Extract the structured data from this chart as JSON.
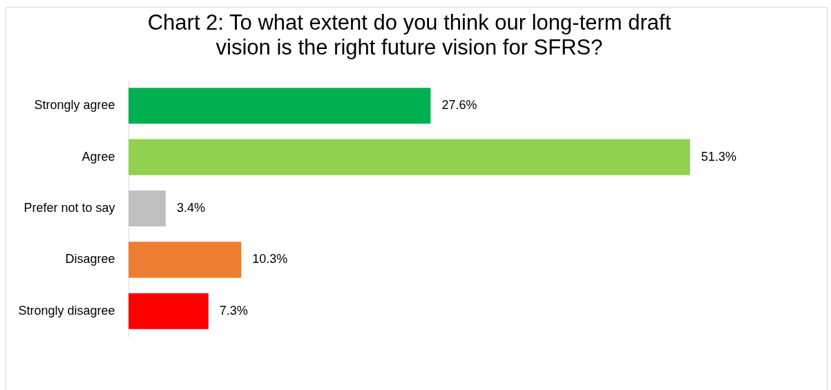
{
  "chart_data": {
    "type": "bar",
    "orientation": "horizontal",
    "title": "Chart 2: To what extent do you think our long-term draft vision is the right future vision for SFRS?",
    "categories": [
      "Strongly agree",
      "Agree",
      "Prefer not to say",
      "Disagree",
      "Strongly disagree"
    ],
    "values": [
      27.6,
      51.3,
      3.4,
      10.3,
      7.3
    ],
    "colors": [
      "#00b050",
      "#92d050",
      "#bfbfbf",
      "#ed7d31",
      "#ff0000"
    ],
    "value_labels": [
      "27.6%",
      "51.3%",
      "3.4%",
      "10.3%",
      "7.3%"
    ]
  }
}
